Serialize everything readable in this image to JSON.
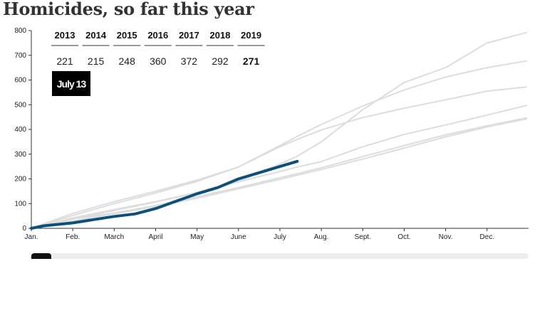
{
  "page": {
    "title": "Homicides, so far this year"
  },
  "chart_data": {
    "type": "line",
    "title": "Homicides, so far this year",
    "xlabel": "",
    "ylabel": "",
    "x_ticks": [
      "Jan.",
      "Feb.",
      "March",
      "April",
      "May",
      "June",
      "July",
      "Aug.",
      "Sept.",
      "Oct.",
      "Nov.",
      "Dec."
    ],
    "y_ticks": [
      0,
      100,
      200,
      300,
      400,
      500,
      600,
      700,
      800
    ],
    "ylim": [
      0,
      800
    ],
    "xlim_month": [
      0,
      12
    ],
    "grid": false,
    "highlight_color": "#0b4f7c",
    "other_color": "#dddddd",
    "current_date_label": "July 13",
    "year_totals": [
      {
        "year": "2013",
        "value": "221"
      },
      {
        "year": "2014",
        "value": "215"
      },
      {
        "year": "2015",
        "value": "248"
      },
      {
        "year": "2016",
        "value": "360"
      },
      {
        "year": "2017",
        "value": "372"
      },
      {
        "year": "2018",
        "value": "292"
      },
      {
        "year": "2019",
        "value": "271",
        "current": true
      }
    ],
    "series_month_axis": [
      {
        "name": "2013",
        "highlight": false,
        "points": [
          [
            0,
            0
          ],
          [
            1,
            38
          ],
          [
            2,
            62
          ],
          [
            3,
            92
          ],
          [
            4,
            128
          ],
          [
            5,
            165
          ],
          [
            6,
            205
          ],
          [
            6.42,
            221
          ],
          [
            7,
            245
          ],
          [
            8,
            290
          ],
          [
            9,
            335
          ],
          [
            10,
            378
          ],
          [
            11,
            415
          ],
          [
            11.95,
            447
          ]
        ]
      },
      {
        "name": "2014",
        "highlight": false,
        "points": [
          [
            0,
            0
          ],
          [
            1,
            30
          ],
          [
            2,
            58
          ],
          [
            3,
            88
          ],
          [
            4,
            122
          ],
          [
            5,
            160
          ],
          [
            6,
            198
          ],
          [
            6.42,
            215
          ],
          [
            7,
            238
          ],
          [
            8,
            280
          ],
          [
            9,
            325
          ],
          [
            10,
            370
          ],
          [
            11,
            410
          ],
          [
            11.95,
            443
          ]
        ]
      },
      {
        "name": "2015",
        "highlight": false,
        "points": [
          [
            0,
            0
          ],
          [
            1,
            42
          ],
          [
            2,
            76
          ],
          [
            3,
            108
          ],
          [
            4,
            145
          ],
          [
            5,
            188
          ],
          [
            6,
            230
          ],
          [
            6.42,
            248
          ],
          [
            7,
            270
          ],
          [
            8,
            330
          ],
          [
            9,
            380
          ],
          [
            10,
            418
          ],
          [
            11,
            458
          ],
          [
            11.95,
            497
          ]
        ]
      },
      {
        "name": "2016",
        "highlight": false,
        "points": [
          [
            0,
            0
          ],
          [
            1,
            60
          ],
          [
            2,
            108
          ],
          [
            3,
            150
          ],
          [
            4,
            195
          ],
          [
            5,
            248
          ],
          [
            6,
            330
          ],
          [
            6.42,
            360
          ],
          [
            7,
            398
          ],
          [
            8,
            448
          ],
          [
            9,
            486
          ],
          [
            10,
            520
          ],
          [
            11,
            555
          ],
          [
            11.95,
            572
          ]
        ]
      },
      {
        "name": "2017",
        "highlight": false,
        "points": [
          [
            0,
            0
          ],
          [
            1,
            52
          ],
          [
            2,
            100
          ],
          [
            3,
            143
          ],
          [
            4,
            190
          ],
          [
            5,
            248
          ],
          [
            6,
            335
          ],
          [
            6.42,
            372
          ],
          [
            7,
            420
          ],
          [
            8,
            495
          ],
          [
            9,
            560
          ],
          [
            10,
            612
          ],
          [
            11,
            650
          ],
          [
            11.95,
            677
          ]
        ]
      },
      {
        "name": "2018",
        "highlight": false,
        "points": [
          [
            0,
            0
          ],
          [
            1,
            38
          ],
          [
            2,
            72
          ],
          [
            3,
            106
          ],
          [
            4,
            145
          ],
          [
            5,
            190
          ],
          [
            6,
            260
          ],
          [
            6.42,
            292
          ],
          [
            7,
            350
          ],
          [
            8,
            480
          ],
          [
            9,
            590
          ],
          [
            10,
            650
          ],
          [
            11,
            750
          ],
          [
            11.95,
            792
          ]
        ]
      },
      {
        "name": "2019",
        "highlight": true,
        "points": [
          [
            0,
            0
          ],
          [
            0.3,
            10
          ],
          [
            1,
            22
          ],
          [
            1.5,
            35
          ],
          [
            2,
            48
          ],
          [
            2.5,
            58
          ],
          [
            3,
            80
          ],
          [
            3.5,
            110
          ],
          [
            4,
            140
          ],
          [
            4.5,
            165
          ],
          [
            5,
            200
          ],
          [
            5.5,
            225
          ],
          [
            6,
            250
          ],
          [
            6.42,
            271
          ]
        ]
      }
    ]
  }
}
